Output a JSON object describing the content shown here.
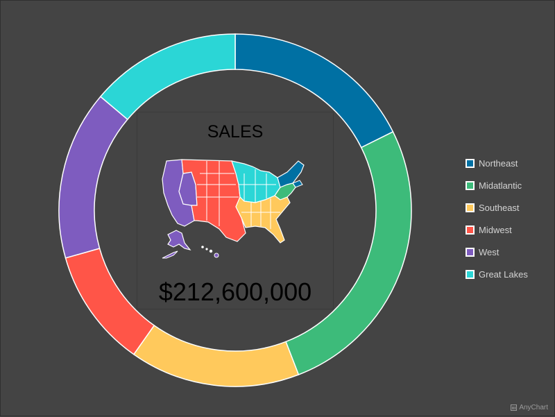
{
  "chart_data": {
    "type": "pie",
    "variant": "donut",
    "center": {
      "title": "SALES",
      "value_label": "$212,600,000",
      "map_icon": "us-regions-map-icon"
    },
    "series": [
      {
        "name": "Northeast",
        "value": 19.0,
        "color": "#0070a3"
      },
      {
        "name": "Midatlantic",
        "value": 28.5,
        "color": "#3dbb7a"
      },
      {
        "name": "Southeast",
        "value": 16.8,
        "color": "#ffc95c"
      },
      {
        "name": "Midwest",
        "value": 11.7,
        "color": "#ff5548"
      },
      {
        "name": "West",
        "value": 16.7,
        "color": "#7e5cbf"
      },
      {
        "name": "Great Lakes",
        "value": 14.9,
        "color": "#2bd6d6"
      }
    ],
    "legend_position": "right",
    "background": "#444444",
    "credits": "AnyChart"
  }
}
